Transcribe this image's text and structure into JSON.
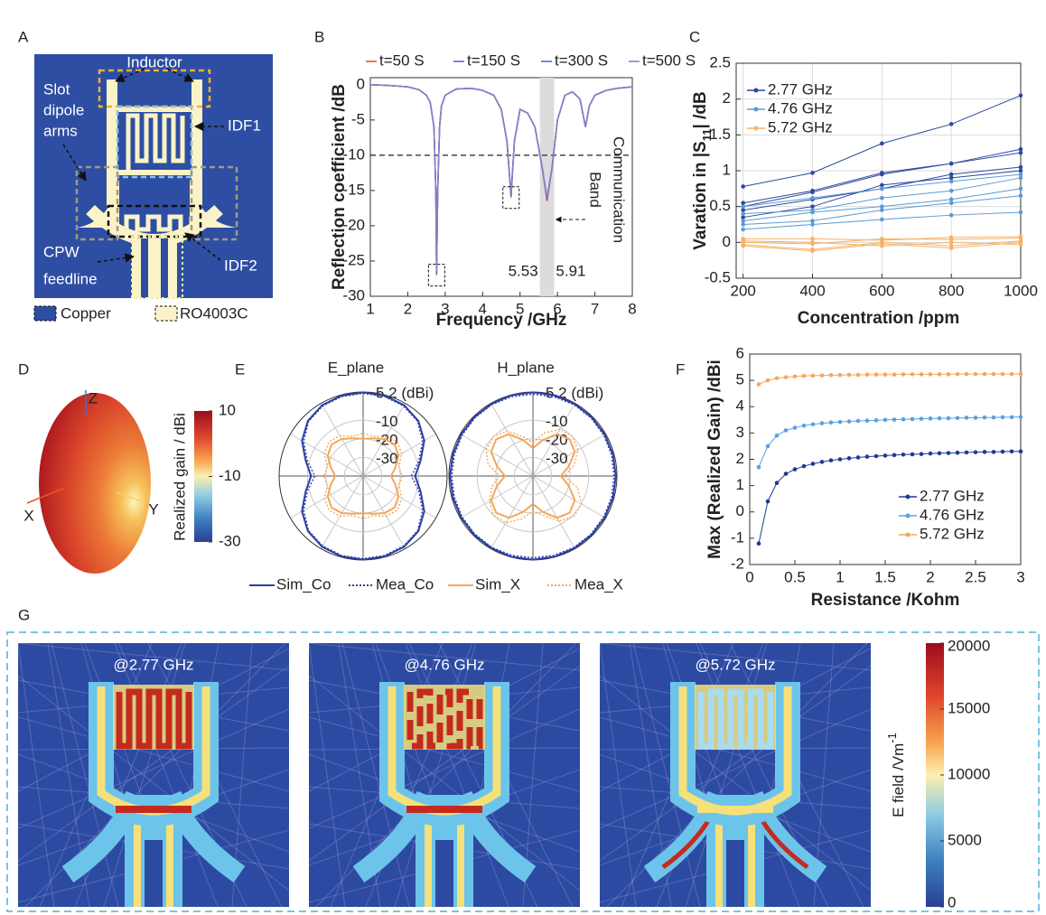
{
  "panel_labels": [
    "A",
    "B",
    "C",
    "D",
    "E",
    "F",
    "G"
  ],
  "antenna_diagram": {
    "labels": {
      "inductor": "Inductor",
      "slot": [
        "Slot",
        "dipole",
        "arms"
      ],
      "idf1": "IDF1",
      "idf2": "IDF2",
      "cpw": [
        "CPW",
        "feedline"
      ]
    },
    "legend": [
      "Copper",
      "RO4003C"
    ]
  },
  "chart_data": [
    {
      "type": "line",
      "legend": "top",
      "line_width": 1.5,
      "markers": false,
      "grid": false,
      "xlabel": "Frequency /GHz",
      "ylabel": "Reflection coefficient /dB",
      "x": [
        1,
        1.5,
        2,
        2.3,
        2.5,
        2.6,
        2.7,
        2.75,
        2.77,
        2.8,
        2.85,
        2.9,
        3,
        3.3,
        3.7,
        4,
        4.3,
        4.5,
        4.65,
        4.76,
        4.85,
        5,
        5.2,
        5.4,
        5.6,
        5.72,
        5.85,
        6,
        6.2,
        6.4,
        6.6,
        6.75,
        6.85,
        7,
        7.3,
        7.6,
        8
      ],
      "xlim": [
        1,
        8
      ],
      "xticks": [
        1,
        2,
        3,
        4,
        5,
        6,
        7,
        8
      ],
      "ylim": [
        -30,
        1
      ],
      "yticks": [
        0,
        -5,
        -10,
        -15,
        -20,
        -25,
        -30
      ],
      "hline": -10,
      "band": [
        5.53,
        5.91
      ],
      "band_label": [
        "Communication",
        "Band"
      ],
      "series": [
        {
          "name": "t=50 S",
          "color": "#e8562a",
          "values": [
            0,
            -0.1,
            -0.3,
            -0.7,
            -1.5,
            -2.5,
            -6,
            -15,
            -27,
            -15,
            -6,
            -3,
            -1.5,
            -0.6,
            -0.5,
            -0.8,
            -1.5,
            -3.5,
            -8,
            -16,
            -8,
            -3.5,
            -4,
            -6,
            -12,
            -16.5,
            -12,
            -5,
            -1.5,
            -1,
            -2,
            -6,
            -3,
            -1.5,
            -0.8,
            -0.5,
            -0.3
          ]
        },
        {
          "name": "t=150 S",
          "color": "#6b5bd6",
          "values": [
            0,
            -0.1,
            -0.3,
            -0.7,
            -1.5,
            -2.5,
            -6,
            -15,
            -26.8,
            -15,
            -6,
            -3,
            -1.5,
            -0.6,
            -0.5,
            -0.8,
            -1.5,
            -3.5,
            -8,
            -15.8,
            -8,
            -3.5,
            -4,
            -6,
            -12,
            -16.3,
            -12,
            -5,
            -1.5,
            -1,
            -2,
            -6,
            -3,
            -1.5,
            -0.8,
            -0.5,
            -0.3
          ]
        },
        {
          "name": "t=300 S",
          "color": "#4d70c8",
          "values": [
            0,
            -0.1,
            -0.3,
            -0.7,
            -1.5,
            -2.5,
            -6,
            -15,
            -26.6,
            -15,
            -6,
            -3,
            -1.5,
            -0.6,
            -0.5,
            -0.8,
            -1.5,
            -3.5,
            -8,
            -15.6,
            -8,
            -3.5,
            -4,
            -6,
            -12,
            -16.2,
            -12,
            -5,
            -1.5,
            -1,
            -2,
            -6,
            -3,
            -1.5,
            -0.8,
            -0.5,
            -0.3
          ]
        },
        {
          "name": "t=500 S",
          "color": "#8a7fc4",
          "values": [
            0,
            -0.1,
            -0.3,
            -0.7,
            -1.5,
            -2.5,
            -6,
            -15,
            -26.5,
            -15,
            -6,
            -3,
            -1.5,
            -0.6,
            -0.5,
            -0.8,
            -1.5,
            -3.5,
            -8,
            -15.5,
            -8,
            -3.5,
            -4,
            -6,
            -12,
            -16,
            -12,
            -5,
            -1.5,
            -1,
            -2,
            -6,
            -3,
            -1.5,
            -0.8,
            -0.5,
            -0.3
          ]
        }
      ]
    },
    {
      "type": "line",
      "legend": "upper left",
      "line_width": 1,
      "markers": true,
      "grid": true,
      "xlabel": "Concentration /ppm",
      "ylabel": [
        "Varation in |S",
        "11",
        "| /dB"
      ],
      "x": [
        200,
        400,
        600,
        800,
        1000
      ],
      "xlim": [
        180,
        1000
      ],
      "xticks": [
        200,
        400,
        600,
        800,
        1000
      ],
      "ylim": [
        -0.5,
        2.5
      ],
      "yticks": [
        -0.5,
        0,
        0.5,
        1,
        1.5,
        2,
        2.5
      ],
      "series": [
        {
          "name": "2.77 GHz",
          "color": "#2c4a9e",
          "values": [
            [
              0.78,
              0.97,
              1.38,
              1.65,
              2.05
            ],
            [
              0.5,
              0.7,
              0.95,
              1.1,
              1.3
            ],
            [
              0.55,
              0.72,
              0.97,
              1.1,
              1.25
            ],
            [
              0.45,
              0.6,
              0.75,
              0.95,
              1.05
            ],
            [
              0.35,
              0.5,
              0.8,
              0.9,
              1.0
            ]
          ]
        },
        {
          "name": "4.76 GHz",
          "color": "#5b9bd5",
          "values": [
            [
              0.5,
              0.62,
              0.75,
              0.85,
              0.95
            ],
            [
              0.4,
              0.45,
              0.62,
              0.72,
              0.9
            ],
            [
              0.3,
              0.42,
              0.5,
              0.6,
              0.75
            ],
            [
              0.25,
              0.3,
              0.45,
              0.55,
              0.65
            ],
            [
              0.18,
              0.25,
              0.32,
              0.38,
              0.42
            ]
          ]
        },
        {
          "name": "5.72 GHz",
          "color": "#f4b26a",
          "values": [
            [
              0.05,
              0.05,
              0.03,
              0.07,
              0.08
            ],
            [
              0,
              -0.02,
              0.05,
              0.04,
              0.06
            ],
            [
              -0.03,
              -0.1,
              0,
              -0.05,
              0.02
            ],
            [
              0.02,
              0,
              -0.05,
              0,
              -0.03
            ],
            [
              -0.05,
              -0.12,
              -0.02,
              -0.08,
              0
            ]
          ]
        }
      ]
    },
    {
      "type": "polar",
      "legend": "bottom",
      "panels": [
        "E_plane",
        "H_plane"
      ],
      "theta": [
        0,
        15,
        30,
        45,
        60,
        75,
        90,
        105,
        120,
        135,
        150,
        165,
        180,
        195,
        210,
        225,
        240,
        255,
        270,
        285,
        300,
        315,
        330,
        345
      ],
      "rlim": [
        -40,
        5.2
      ],
      "rticks": [
        {
          "value": 5.2,
          "label": "5.2 (dBi)"
        },
        -10,
        -20,
        -30
      ],
      "series": [
        {
          "name": "Sim_Co",
          "color": "#2b3fa6",
          "dashed": false,
          "values": [
            [
              5,
              4.8,
              4,
              2,
              -2,
              -8,
              -12,
              -8,
              -2,
              2,
              4,
              4.8,
              5,
              4.8,
              4,
              2,
              -2,
              -8,
              -12,
              -8,
              -2,
              2,
              4,
              4.8
            ],
            [
              5,
              5,
              4.8,
              4.7,
              4.6,
              4.6,
              4.6,
              4.6,
              4.6,
              4.7,
              4.8,
              5,
              5,
              5,
              4.8,
              4.7,
              4.6,
              4.6,
              4.6,
              4.6,
              4.6,
              4.7,
              4.8,
              5
            ]
          ]
        },
        {
          "name": "Mea_Co",
          "color": "#2b3fa6",
          "dashed": true,
          "values": [
            [
              4.5,
              4.3,
              3.5,
              1.5,
              -3,
              -9,
              -14,
              -9,
              -3,
              1.5,
              3.5,
              4.3,
              4.5,
              4.3,
              3.5,
              1.5,
              -3,
              -9,
              -14,
              -9,
              -3,
              1.5,
              3.5,
              4.3
            ],
            [
              4,
              4.2,
              4.3,
              4.2,
              4,
              3.8,
              3.7,
              3.8,
              4,
              4.2,
              4.3,
              4.2,
              4,
              4.2,
              4.3,
              4.2,
              4,
              3.8,
              3.7,
              3.8,
              4,
              4.2,
              4.3,
              4.2
            ]
          ]
        },
        {
          "name": "Sim_X",
          "color": "#f5a65b",
          "dashed": false,
          "values": [
            [
              -20,
              -19,
              -17,
              -16,
              -18,
              -22,
              -25,
              -22,
              -18,
              -16,
              -17,
              -19,
              -20,
              -19,
              -17,
              -16,
              -18,
              -22,
              -25,
              -22,
              -18,
              -16,
              -17,
              -19
            ],
            [
              -25,
              -20,
              -14,
              -12,
              -14,
              -20,
              -25,
              -20,
              -14,
              -12,
              -14,
              -20,
              -25,
              -20,
              -14,
              -12,
              -14,
              -20,
              -25,
              -20,
              -14,
              -12,
              -14,
              -20
            ]
          ]
        },
        {
          "name": "Mea_X",
          "color": "#f5a65b",
          "dashed": true,
          "values": [
            [
              -17,
              -18,
              -15,
              -14,
              -16,
              -20,
              -19,
              -20,
              -16,
              -14,
              -15,
              -18,
              -17,
              -18,
              -15,
              -14,
              -16,
              -20,
              -19,
              -20,
              -16,
              -14,
              -15,
              -18
            ],
            [
              -22,
              -16,
              -11,
              -10,
              -12,
              -17,
              -23,
              -15,
              -10,
              -9,
              -12,
              -18,
              -21,
              -16,
              -11,
              -10,
              -13,
              -17,
              -22,
              -15,
              -11,
              -10,
              -12,
              -18
            ]
          ]
        }
      ]
    },
    {
      "type": "line",
      "legend": "lower right",
      "line_width": 1,
      "markers": true,
      "grid": false,
      "xlabel": "Resistance  /Kohm",
      "ylabel": "Max (Realized Gain) /dBi",
      "x": [
        0.1,
        0.2,
        0.3,
        0.4,
        0.5,
        0.6,
        0.7,
        0.8,
        0.9,
        1.0,
        1.1,
        1.2,
        1.3,
        1.4,
        1.5,
        1.6,
        1.7,
        1.8,
        1.9,
        2.0,
        2.1,
        2.2,
        2.3,
        2.4,
        2.5,
        2.6,
        2.7,
        2.8,
        2.9,
        3.0
      ],
      "xlim": [
        0,
        3
      ],
      "xticks": [
        0,
        0.5,
        1,
        1.5,
        2,
        2.5,
        3
      ],
      "ylim": [
        -2,
        6
      ],
      "yticks": [
        -2,
        -1,
        0,
        1,
        2,
        3,
        4,
        5,
        6
      ],
      "series": [
        {
          "name": "2.77 GHz",
          "color": "#1f3a93",
          "values": [
            -1.2,
            0.4,
            1.1,
            1.45,
            1.62,
            1.74,
            1.83,
            1.9,
            1.96,
            2.0,
            2.04,
            2.07,
            2.1,
            2.12,
            2.14,
            2.16,
            2.18,
            2.19,
            2.2,
            2.22,
            2.23,
            2.24,
            2.25,
            2.26,
            2.27,
            2.28,
            2.28,
            2.29,
            2.3,
            2.3
          ]
        },
        {
          "name": "4.76 GHz",
          "color": "#5aa0e0",
          "values": [
            1.7,
            2.5,
            2.9,
            3.1,
            3.2,
            3.28,
            3.33,
            3.37,
            3.4,
            3.42,
            3.44,
            3.46,
            3.47,
            3.48,
            3.5,
            3.51,
            3.52,
            3.53,
            3.54,
            3.55,
            3.56,
            3.56,
            3.57,
            3.58,
            3.58,
            3.59,
            3.59,
            3.6,
            3.6,
            3.61
          ]
        },
        {
          "name": "5.72 GHz",
          "color": "#f5a65b",
          "values": [
            4.85,
            5.0,
            5.08,
            5.12,
            5.15,
            5.17,
            5.18,
            5.19,
            5.2,
            5.2,
            5.21,
            5.21,
            5.22,
            5.22,
            5.22,
            5.22,
            5.23,
            5.23,
            5.23,
            5.23,
            5.23,
            5.23,
            5.24,
            5.24,
            5.24,
            5.24,
            5.24,
            5.24,
            5.24,
            5.25
          ]
        }
      ]
    }
  ],
  "gain_3d": {
    "axes": [
      "Z",
      "X",
      "Y"
    ],
    "colorbar_label": "Realized gain / dBi",
    "lim": [
      -30,
      10
    ],
    "ticks": [
      10,
      -10,
      -30
    ]
  },
  "field_maps": {
    "titles": [
      "@2.77 GHz",
      "@4.76 GHz",
      "@5.72 GHz"
    ],
    "colorbar_label": [
      "E field /Vm",
      "-1"
    ],
    "lim": [
      0,
      20000
    ],
    "ticks": [
      20000,
      15000,
      10000,
      5000,
      0
    ]
  }
}
